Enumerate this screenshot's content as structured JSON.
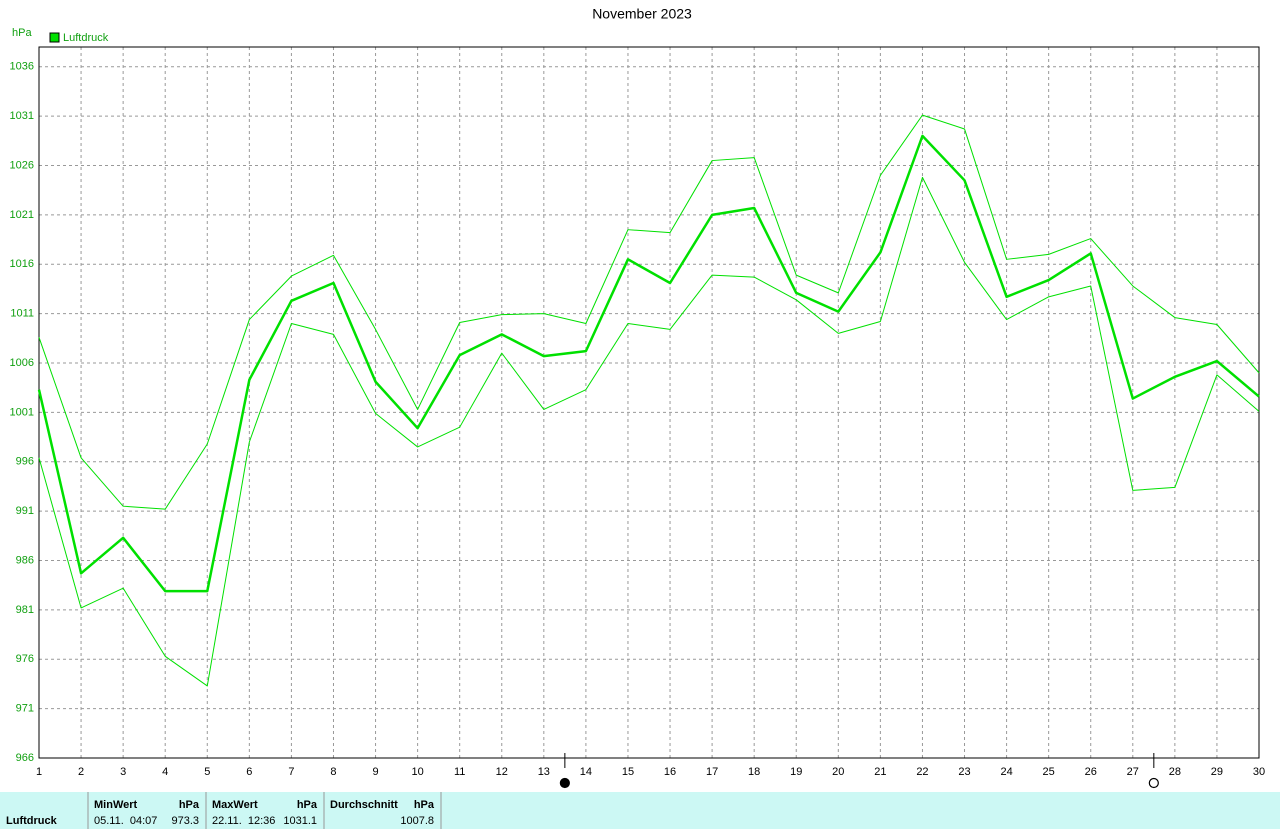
{
  "chart_data": {
    "type": "line",
    "title": "November 2023",
    "y_label": "hPa",
    "x": [
      1,
      2,
      3,
      4,
      5,
      6,
      7,
      8,
      9,
      10,
      11,
      12,
      13,
      14,
      15,
      16,
      17,
      18,
      19,
      20,
      21,
      22,
      23,
      24,
      25,
      26,
      27,
      28,
      29,
      30
    ],
    "xlim": [
      1,
      30
    ],
    "ylim": [
      966,
      1038
    ],
    "yticks": [
      966,
      971,
      976,
      981,
      986,
      991,
      996,
      1001,
      1006,
      1011,
      1016,
      1021,
      1026,
      1031,
      1036
    ],
    "grid": true,
    "legend": "top-left",
    "series": [
      {
        "name": "Luftdruck",
        "color": "#00e000",
        "width": 2.5,
        "values": [
          1003.3,
          984.7,
          988.3,
          982.9,
          982.9,
          1004.3,
          1012.3,
          1014.1,
          1004.1,
          999.4,
          1006.8,
          1008.9,
          1006.7,
          1007.2,
          1016.5,
          1014.1,
          1021.0,
          1021.7,
          1013.1,
          1011.2,
          1017.2,
          1029.0,
          1024.5,
          1012.7,
          1014.4,
          1017.1,
          1002.4,
          1004.6,
          1006.2,
          1002.6
        ]
      },
      {
        "color": "#00e000",
        "width": 1,
        "values": [
          1008.6,
          996.4,
          991.5,
          991.2,
          997.8,
          1010.4,
          1014.8,
          1016.9,
          1009.4,
          1001.3,
          1010.1,
          1010.9,
          1011.0,
          1010.0,
          1019.5,
          1019.2,
          1026.5,
          1026.8,
          1014.9,
          1013.1,
          1025.0,
          1031.1,
          1029.7,
          1016.5,
          1017.0,
          1018.6,
          1013.8,
          1010.6,
          1009.9,
          1005.0
        ]
      },
      {
        "color": "#00e000",
        "width": 1,
        "values": [
          996.4,
          981.2,
          983.2,
          976.3,
          973.3,
          998.0,
          1010.0,
          1008.9,
          1000.9,
          997.5,
          999.5,
          1007.0,
          1001.3,
          1003.3,
          1010.0,
          1009.4,
          1014.9,
          1014.7,
          1012.4,
          1009.0,
          1010.2,
          1024.8,
          1016.2,
          1010.4,
          1012.7,
          1013.8,
          993.1,
          993.4,
          1004.8,
          1001.1
        ]
      }
    ],
    "moon_markers": [
      {
        "x": 13.5,
        "filled": true
      },
      {
        "x": 27.5,
        "filled": false
      }
    ]
  },
  "summary": {
    "label": "Luftdruck",
    "columns": [
      {
        "header": "MinWert",
        "unit": "hPa",
        "time": "05.11.  04:07",
        "value": "973.3"
      },
      {
        "header": "MaxWert",
        "unit": "hPa",
        "time": "22.11.  12:36",
        "value": "1031.1"
      },
      {
        "header": "Durchschnitt",
        "unit": "hPa",
        "value": "1007.8"
      }
    ]
  }
}
